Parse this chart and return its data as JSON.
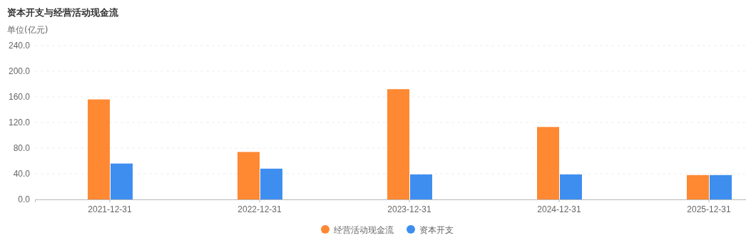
{
  "chart_data": {
    "type": "bar",
    "title": "资本开支与经营活动现金流",
    "ylabel": "单位(亿元)",
    "categories": [
      "2021-12-31",
      "2022-12-31",
      "2023-12-31",
      "2024-12-31",
      "2025-12-31"
    ],
    "series": [
      {
        "name": "经营活动现金流",
        "color": "#ff8833",
        "values": [
          156,
          74,
          172,
          113,
          38
        ]
      },
      {
        "name": "资本开支",
        "color": "#3e8ef0",
        "values": [
          56,
          48,
          39,
          39,
          38
        ]
      }
    ],
    "ylim": [
      0,
      240
    ],
    "yticks": [
      {
        "value": 0,
        "label": "0.0"
      },
      {
        "value": 40,
        "label": "40.0"
      },
      {
        "value": 80,
        "label": "80.0"
      },
      {
        "value": 120,
        "label": "120.0"
      },
      {
        "value": 160,
        "label": "160.0"
      },
      {
        "value": 200,
        "label": "200.0"
      },
      {
        "value": 240,
        "label": "240.0"
      }
    ],
    "grid": "y",
    "legend": "bottom"
  }
}
